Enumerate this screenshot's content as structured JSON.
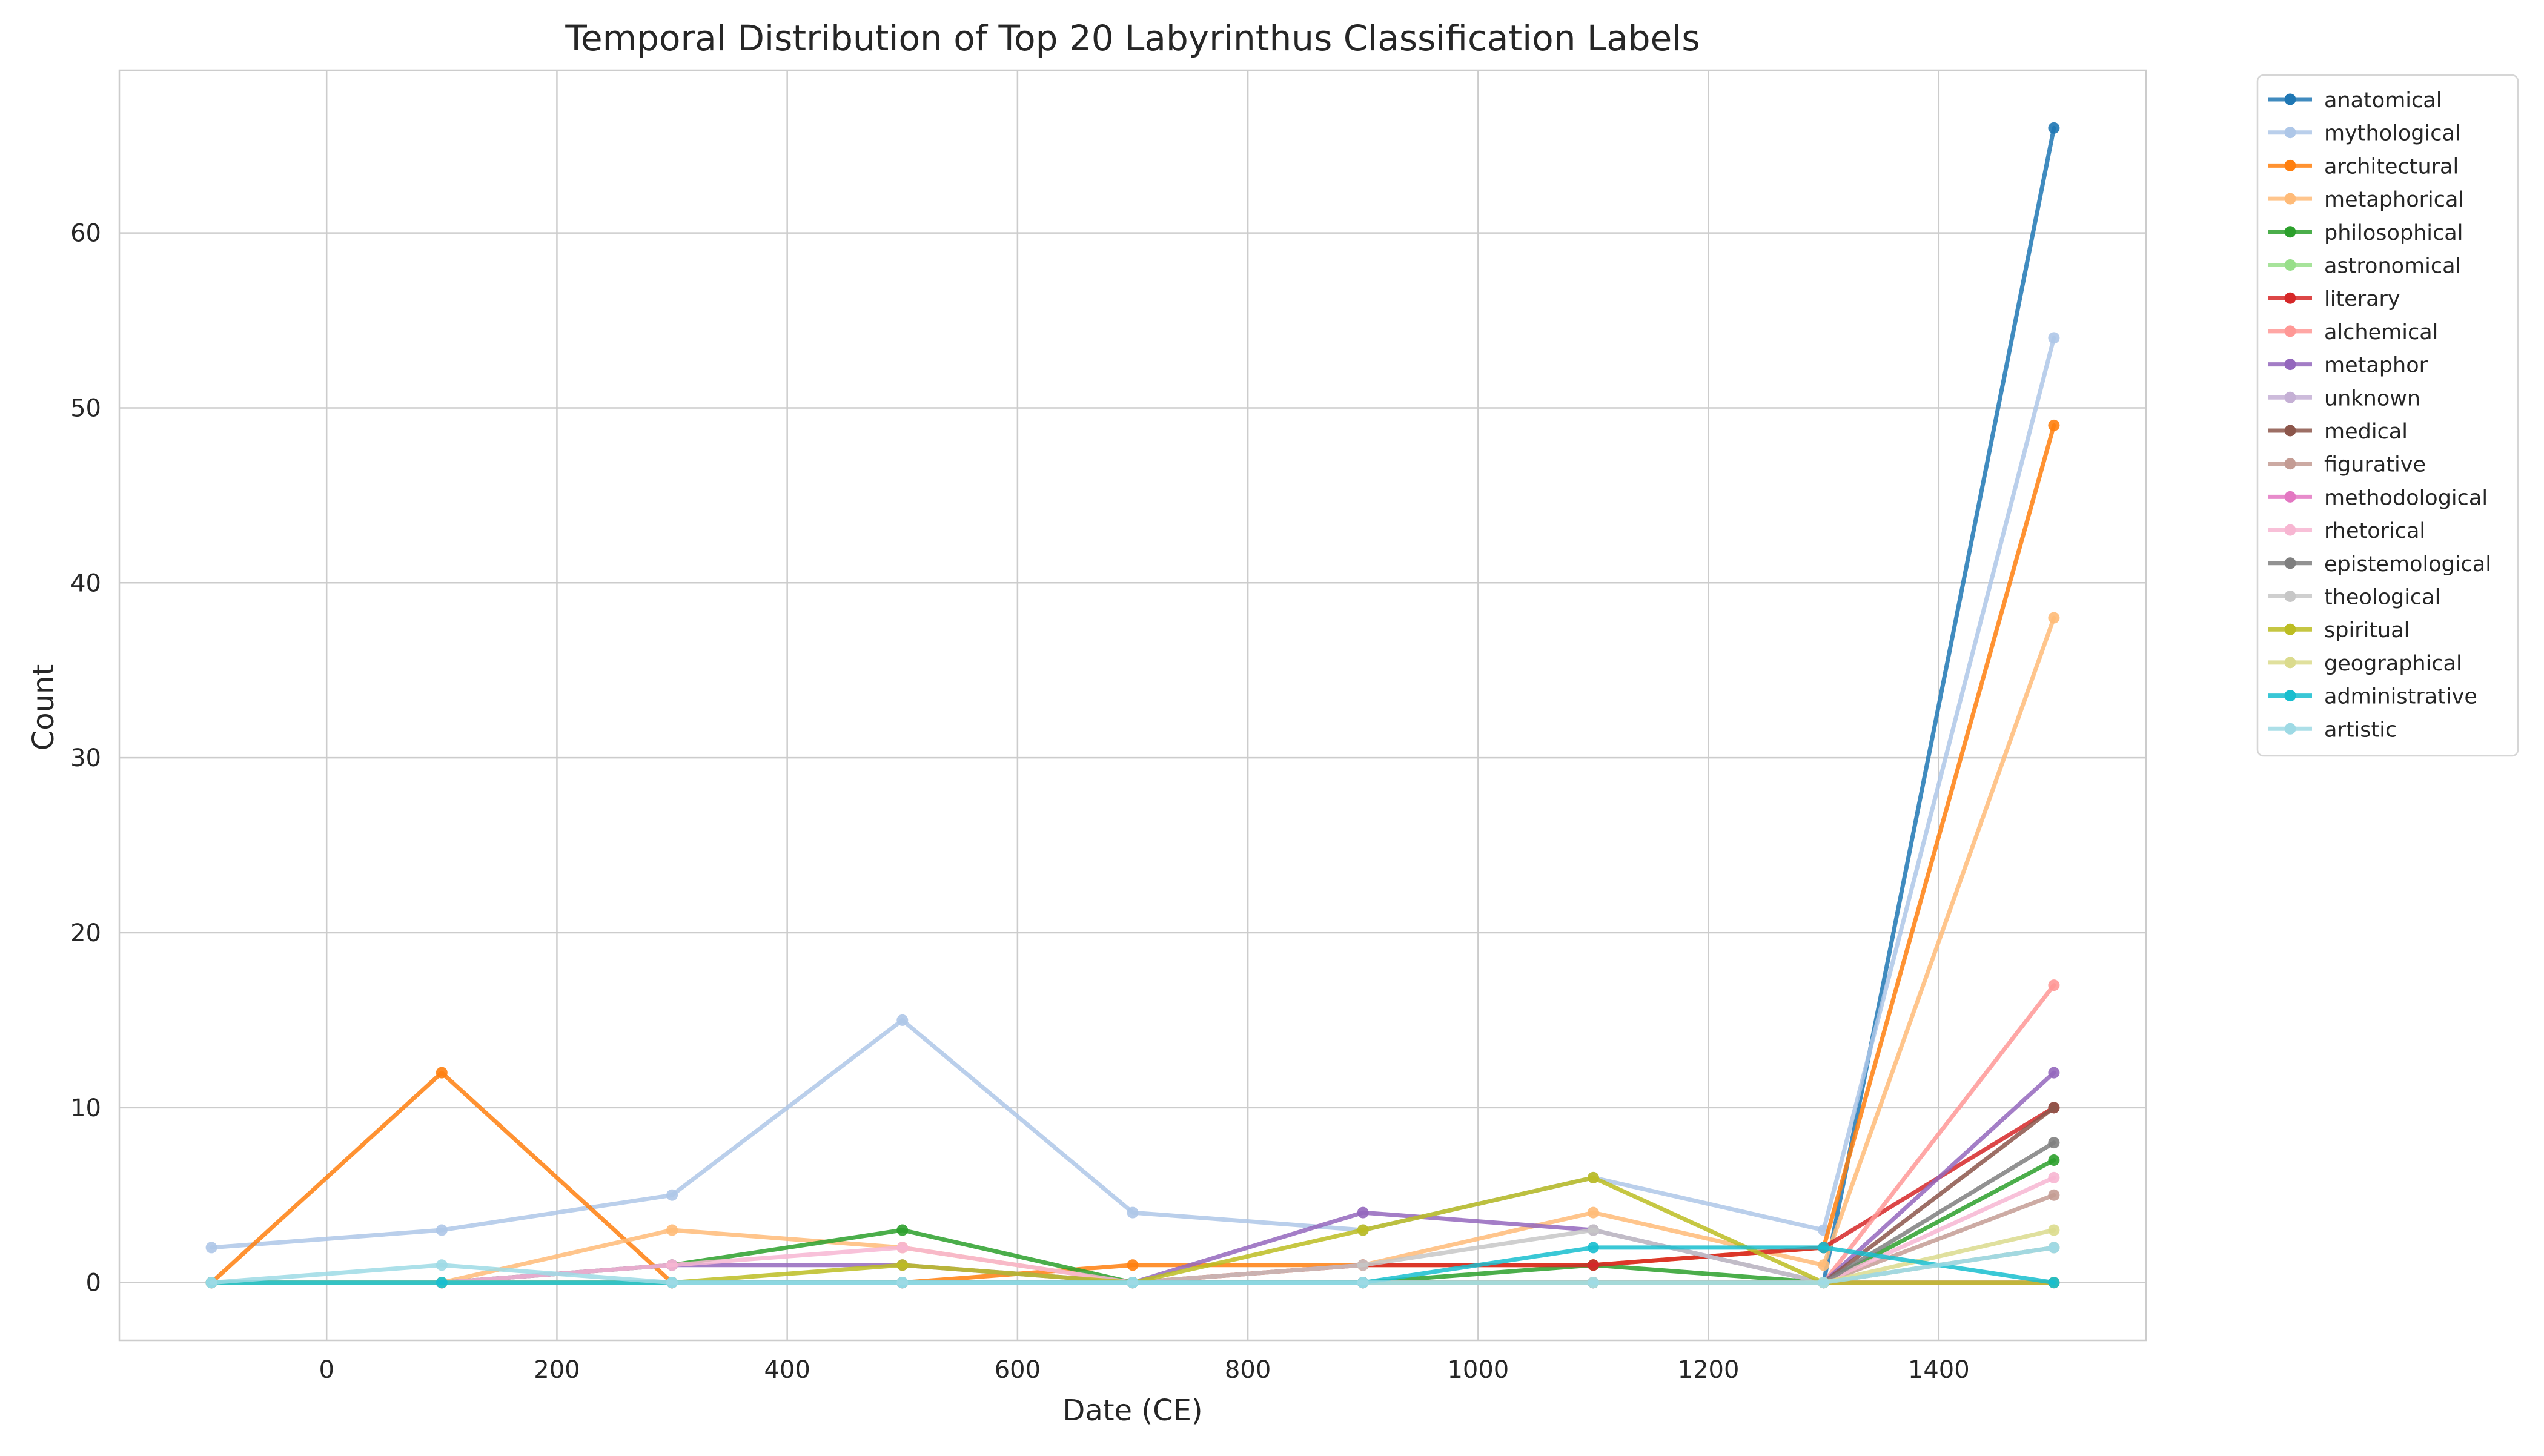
{
  "chart_data": {
    "type": "line",
    "title": "Temporal Distribution of Top 20 Labyrinthus Classification Labels",
    "xlabel": "Date (CE)",
    "ylabel": "Count",
    "x": [
      -100,
      100,
      300,
      500,
      700,
      900,
      1100,
      1300,
      1500
    ],
    "xlim": [
      -180,
      1580
    ],
    "ylim": [
      -3.3,
      69.3
    ],
    "xticks": [
      0,
      200,
      400,
      600,
      800,
      1000,
      1200,
      1400
    ],
    "yticks": [
      0,
      10,
      20,
      30,
      40,
      50,
      60
    ],
    "grid": true,
    "legend_position": "outside-right-top",
    "series": [
      {
        "name": "anatomical",
        "color": "#1f77b4",
        "values": [
          0,
          0,
          0,
          0,
          0,
          0,
          0,
          0,
          66
        ]
      },
      {
        "name": "mythological",
        "color": "#aec7e8",
        "values": [
          2,
          3,
          5,
          15,
          4,
          3,
          6,
          3,
          54
        ]
      },
      {
        "name": "architectural",
        "color": "#ff7f0e",
        "values": [
          0,
          12,
          0,
          0,
          1,
          1,
          1,
          2,
          49
        ]
      },
      {
        "name": "metaphorical",
        "color": "#ffbb78",
        "values": [
          0,
          0,
          3,
          2,
          0,
          1,
          4,
          1,
          38
        ]
      },
      {
        "name": "philosophical",
        "color": "#2ca02c",
        "values": [
          0,
          0,
          1,
          3,
          0,
          0,
          1,
          0,
          7
        ]
      },
      {
        "name": "astronomical",
        "color": "#98df8a",
        "values": [
          0,
          0,
          0,
          0,
          0,
          0,
          0,
          0,
          2
        ]
      },
      {
        "name": "literary",
        "color": "#d62728",
        "values": [
          0,
          0,
          0,
          0,
          0,
          1,
          1,
          2,
          10
        ]
      },
      {
        "name": "alchemical",
        "color": "#ff9896",
        "values": [
          0,
          0,
          0,
          0,
          0,
          0,
          0,
          0,
          17
        ]
      },
      {
        "name": "metaphor",
        "color": "#9467bd",
        "values": [
          0,
          0,
          1,
          1,
          0,
          4,
          3,
          0,
          12
        ]
      },
      {
        "name": "unknown",
        "color": "#c5b0d5",
        "values": [
          0,
          0,
          0,
          0,
          0,
          0,
          0,
          0,
          0
        ]
      },
      {
        "name": "medical",
        "color": "#8c564b",
        "values": [
          0,
          0,
          0,
          0,
          0,
          0,
          0,
          0,
          10
        ]
      },
      {
        "name": "figurative",
        "color": "#c49c94",
        "values": [
          0,
          0,
          0,
          0,
          0,
          0,
          0,
          0,
          5
        ]
      },
      {
        "name": "methodological",
        "color": "#e377c2",
        "values": [
          0,
          0,
          0,
          0,
          0,
          0,
          0,
          0,
          0
        ]
      },
      {
        "name": "rhetorical",
        "color": "#f7b6d2",
        "values": [
          0,
          0,
          1,
          2,
          0,
          0,
          0,
          0,
          6
        ]
      },
      {
        "name": "epistemological",
        "color": "#7f7f7f",
        "values": [
          0,
          0,
          0,
          0,
          0,
          0,
          0,
          0,
          8
        ]
      },
      {
        "name": "theological",
        "color": "#c7c7c7",
        "values": [
          0,
          0,
          0,
          0,
          0,
          1,
          3,
          0,
          2
        ]
      },
      {
        "name": "spiritual",
        "color": "#bcbd22",
        "values": [
          0,
          0,
          0,
          1,
          0,
          3,
          6,
          0,
          0
        ]
      },
      {
        "name": "geographical",
        "color": "#dbdb8d",
        "values": [
          0,
          0,
          0,
          0,
          0,
          0,
          0,
          0,
          3
        ]
      },
      {
        "name": "administrative",
        "color": "#17becf",
        "values": [
          0,
          0,
          0,
          0,
          0,
          0,
          2,
          2,
          0
        ]
      },
      {
        "name": "artistic",
        "color": "#9edae5",
        "values": [
          0,
          1,
          0,
          0,
          0,
          0,
          0,
          0,
          2
        ]
      }
    ]
  }
}
